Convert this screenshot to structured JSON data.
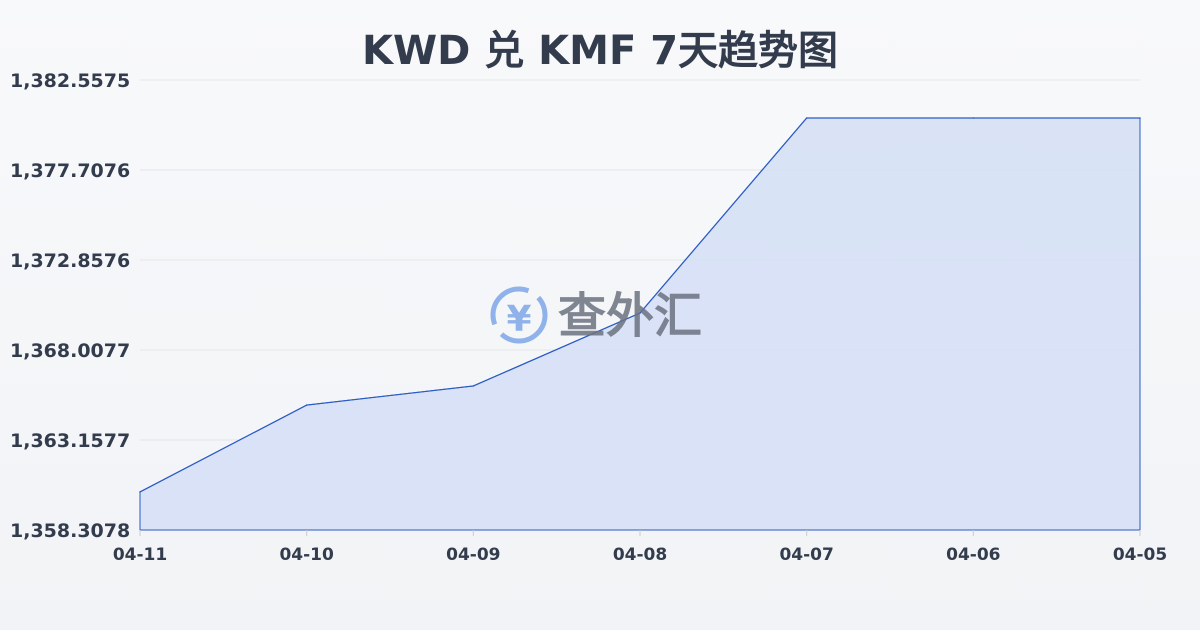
{
  "chart_data": {
    "type": "area",
    "title": "KWD 兑 KMF 7天趋势图",
    "categories": [
      "04-11",
      "04-10",
      "04-09",
      "04-08",
      "04-07",
      "04-06",
      "04-05"
    ],
    "values": [
      1360.36,
      1365.04,
      1366.07,
      1370.0,
      1380.51,
      1380.51,
      1380.51
    ],
    "yticks": [
      "1,358.3078",
      "1,363.1577",
      "1,368.0077",
      "1,372.8576",
      "1,377.7076",
      "1,382.5575"
    ],
    "ylim": [
      1358.3078,
      1382.5575
    ],
    "grid": true,
    "line_color": "#2a5bc4",
    "fill_color": "#d6e0f5"
  },
  "watermark": {
    "text": "查外汇",
    "symbol": "¥"
  }
}
